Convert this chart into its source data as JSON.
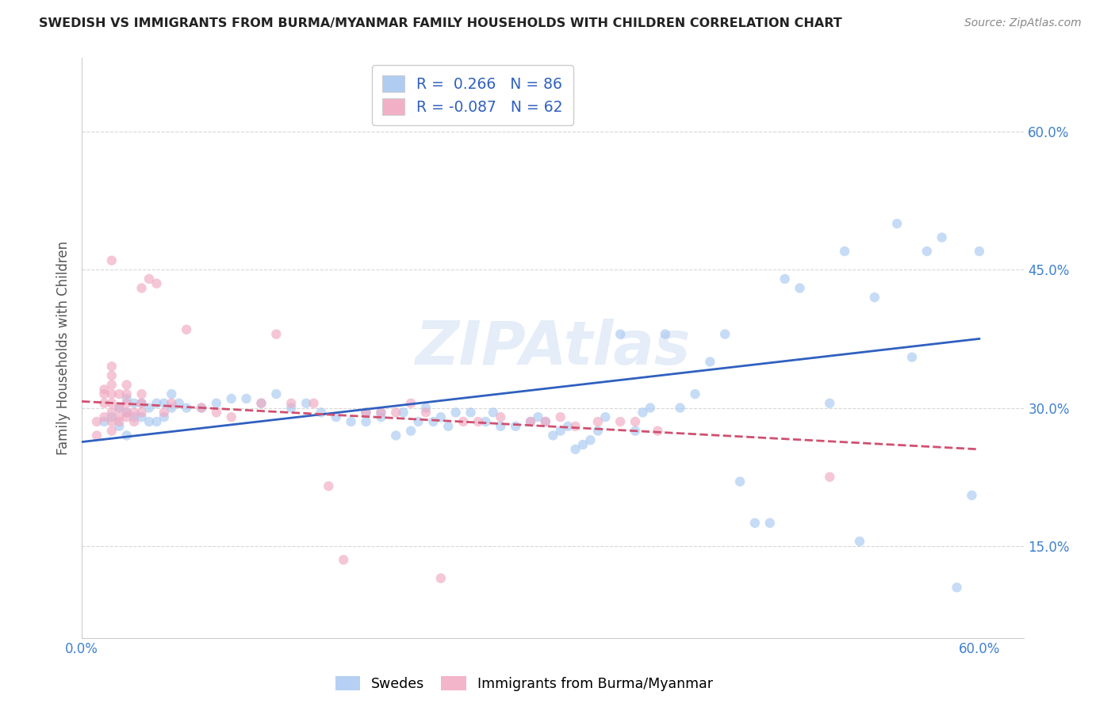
{
  "title": "SWEDISH VS IMMIGRANTS FROM BURMA/MYANMAR FAMILY HOUSEHOLDS WITH CHILDREN CORRELATION CHART",
  "source": "Source: ZipAtlas.com",
  "ylabel": "Family Households with Children",
  "xlim": [
    0.0,
    0.63
  ],
  "ylim": [
    0.05,
    0.68
  ],
  "ytick_positions": [
    0.15,
    0.3,
    0.45,
    0.6
  ],
  "ytick_labels": [
    "15.0%",
    "30.0%",
    "45.0%",
    "60.0%"
  ],
  "xtick_positions": [
    0.0,
    0.1,
    0.2,
    0.3,
    0.4,
    0.5,
    0.6
  ],
  "xtick_labels": [
    "0.0%",
    "",
    "",
    "",
    "",
    "",
    "60.0%"
  ],
  "legend_line1": "R =  0.266   N = 86",
  "legend_line2": "R = -0.087   N = 62",
  "legend_labels_bottom": [
    "Swedes",
    "Immigrants from Burma/Myanmar"
  ],
  "watermark": "ZIPAtlas",
  "blue_scatter_x": [
    0.015,
    0.02,
    0.025,
    0.025,
    0.03,
    0.03,
    0.03,
    0.035,
    0.035,
    0.04,
    0.04,
    0.045,
    0.045,
    0.05,
    0.05,
    0.055,
    0.055,
    0.06,
    0.06,
    0.065,
    0.07,
    0.08,
    0.09,
    0.1,
    0.11,
    0.12,
    0.13,
    0.14,
    0.15,
    0.16,
    0.17,
    0.18,
    0.19,
    0.19,
    0.2,
    0.2,
    0.21,
    0.215,
    0.22,
    0.225,
    0.23,
    0.235,
    0.24,
    0.245,
    0.25,
    0.26,
    0.27,
    0.275,
    0.28,
    0.29,
    0.3,
    0.305,
    0.31,
    0.315,
    0.32,
    0.325,
    0.33,
    0.335,
    0.34,
    0.345,
    0.35,
    0.36,
    0.37,
    0.375,
    0.38,
    0.39,
    0.4,
    0.41,
    0.42,
    0.43,
    0.44,
    0.45,
    0.46,
    0.47,
    0.48,
    0.5,
    0.51,
    0.52,
    0.53,
    0.545,
    0.555,
    0.565,
    0.575,
    0.585,
    0.595,
    0.6
  ],
  "blue_scatter_y": [
    0.285,
    0.29,
    0.28,
    0.3,
    0.27,
    0.295,
    0.31,
    0.29,
    0.305,
    0.29,
    0.305,
    0.285,
    0.3,
    0.285,
    0.305,
    0.29,
    0.305,
    0.3,
    0.315,
    0.305,
    0.3,
    0.3,
    0.305,
    0.31,
    0.31,
    0.305,
    0.315,
    0.3,
    0.305,
    0.295,
    0.29,
    0.285,
    0.285,
    0.295,
    0.29,
    0.295,
    0.27,
    0.295,
    0.275,
    0.285,
    0.3,
    0.285,
    0.29,
    0.28,
    0.295,
    0.295,
    0.285,
    0.295,
    0.28,
    0.28,
    0.285,
    0.29,
    0.285,
    0.27,
    0.275,
    0.28,
    0.255,
    0.26,
    0.265,
    0.275,
    0.29,
    0.38,
    0.275,
    0.295,
    0.3,
    0.38,
    0.3,
    0.315,
    0.35,
    0.38,
    0.22,
    0.175,
    0.175,
    0.44,
    0.43,
    0.305,
    0.47,
    0.155,
    0.42,
    0.5,
    0.355,
    0.47,
    0.485,
    0.105,
    0.205,
    0.47
  ],
  "pink_scatter_x": [
    0.01,
    0.01,
    0.015,
    0.015,
    0.015,
    0.015,
    0.02,
    0.02,
    0.02,
    0.02,
    0.02,
    0.02,
    0.02,
    0.02,
    0.02,
    0.025,
    0.025,
    0.025,
    0.025,
    0.03,
    0.03,
    0.03,
    0.03,
    0.03,
    0.035,
    0.035,
    0.04,
    0.04,
    0.04,
    0.04,
    0.045,
    0.05,
    0.055,
    0.06,
    0.07,
    0.08,
    0.09,
    0.1,
    0.12,
    0.13,
    0.14,
    0.155,
    0.165,
    0.175,
    0.19,
    0.2,
    0.21,
    0.22,
    0.23,
    0.24,
    0.255,
    0.265,
    0.28,
    0.3,
    0.31,
    0.32,
    0.33,
    0.345,
    0.36,
    0.37,
    0.385,
    0.5
  ],
  "pink_scatter_y": [
    0.27,
    0.285,
    0.29,
    0.305,
    0.315,
    0.32,
    0.275,
    0.285,
    0.295,
    0.305,
    0.315,
    0.325,
    0.335,
    0.345,
    0.46,
    0.285,
    0.29,
    0.3,
    0.315,
    0.29,
    0.295,
    0.305,
    0.315,
    0.325,
    0.285,
    0.295,
    0.295,
    0.305,
    0.315,
    0.43,
    0.44,
    0.435,
    0.295,
    0.305,
    0.385,
    0.3,
    0.295,
    0.29,
    0.305,
    0.38,
    0.305,
    0.305,
    0.215,
    0.135,
    0.295,
    0.295,
    0.295,
    0.305,
    0.295,
    0.115,
    0.285,
    0.285,
    0.29,
    0.285,
    0.285,
    0.29,
    0.28,
    0.285,
    0.285,
    0.285,
    0.275,
    0.225
  ],
  "blue_line_x": [
    0.0,
    0.6
  ],
  "blue_line_y": [
    0.263,
    0.375
  ],
  "pink_line_x": [
    0.0,
    0.6
  ],
  "pink_line_y": [
    0.307,
    0.255
  ],
  "scatter_alpha": 0.65,
  "scatter_size": 80,
  "blue_color": "#a8c8f0",
  "pink_color": "#f0a8c0",
  "blue_line_color": "#3060c0",
  "pink_line_color": "#d05070",
  "grid_color": "#d8d8d8",
  "grid_linestyle": "--",
  "bg_color": "#ffffff",
  "tick_color": "#4080d0",
  "ylabel_color": "#555555",
  "title_color": "#222222",
  "source_color": "#888888"
}
